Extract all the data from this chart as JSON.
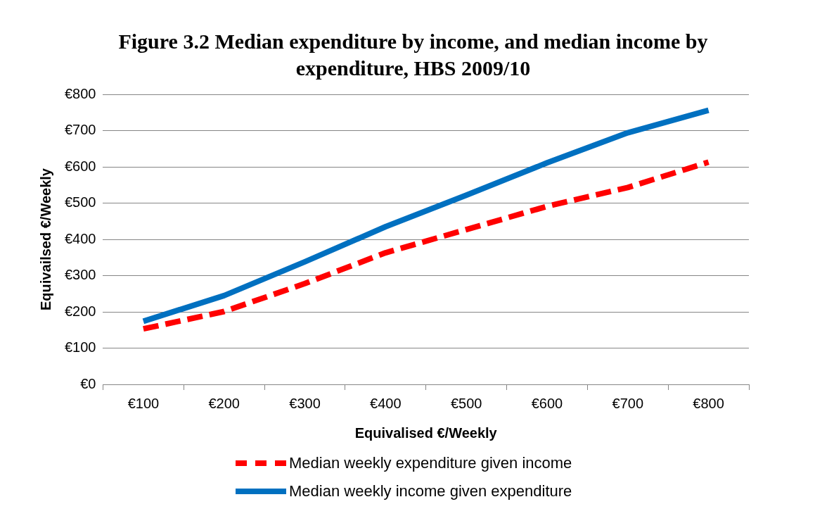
{
  "chart_data": {
    "type": "line",
    "title": "Figure 3.2 Median expenditure by income, and median income by expenditure, HBS 2009/10",
    "xlabel": "Equivalised €/Weekly",
    "ylabel": "Equivailsed €/Weekly",
    "categories": [
      "€100",
      "€200",
      "€300",
      "€400",
      "€500",
      "€600",
      "€700",
      "€800"
    ],
    "series": [
      {
        "name": "Median weekly expenditure given income",
        "color": "#ff0000",
        "line_style": "dashed",
        "values": [
          153,
          201,
          278,
          363,
          427,
          491,
          543,
          613
        ]
      },
      {
        "name": "Median weekly income given expenditure",
        "color": "#0070c0",
        "line_style": "solid",
        "values": [
          174,
          245,
          338,
          435,
          522,
          611,
          694,
          756
        ]
      }
    ],
    "ylim": [
      0,
      800
    ],
    "yticks": [
      {
        "value": 0,
        "label": "€0"
      },
      {
        "value": 100,
        "label": "€100"
      },
      {
        "value": 200,
        "label": "€200"
      },
      {
        "value": 300,
        "label": "€300"
      },
      {
        "value": 400,
        "label": "€400"
      },
      {
        "value": 500,
        "label": "€500"
      },
      {
        "value": 600,
        "label": "€600"
      },
      {
        "value": 700,
        "label": "€700"
      },
      {
        "value": 800,
        "label": "€800"
      }
    ],
    "grid": "y",
    "legend": "bottom",
    "marker": "none"
  }
}
